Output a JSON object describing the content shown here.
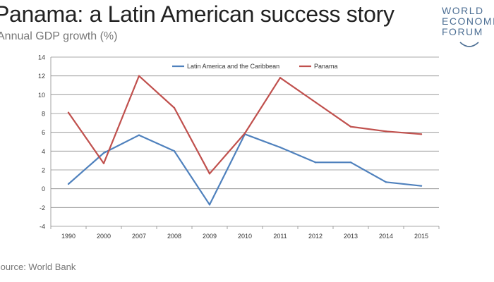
{
  "header": {
    "title": "Panama: a Latin American success story",
    "subtitle": "Annual GDP growth (%)"
  },
  "footer": {
    "source": "Source: World Bank"
  },
  "logo": {
    "lines": [
      "WORLD",
      "ECONOMIC",
      "FORUM"
    ],
    "color": "#4d6f94"
  },
  "chart_data": {
    "type": "line",
    "title": "",
    "xlabel": "",
    "ylabel": "",
    "categories": [
      "1990",
      "2000",
      "2007",
      "2008",
      "2009",
      "2010",
      "2011",
      "2012",
      "2013",
      "2014",
      "2015"
    ],
    "ylim": [
      -4,
      14
    ],
    "yticks": [
      -4,
      -2,
      0,
      2,
      4,
      6,
      8,
      10,
      12,
      14
    ],
    "grid": true,
    "legend": "top-center",
    "series": [
      {
        "name": "Latin America and the Caribbean",
        "color": "#4f81bd",
        "values": [
          0.5,
          3.8,
          5.7,
          4.0,
          -1.7,
          5.8,
          4.4,
          2.8,
          2.8,
          0.7,
          0.3
        ]
      },
      {
        "name": "Panama",
        "color": "#c0504d",
        "values": [
          8.1,
          2.7,
          12.0,
          8.6,
          1.6,
          5.9,
          11.8,
          9.2,
          6.6,
          6.1,
          5.8
        ]
      }
    ]
  }
}
